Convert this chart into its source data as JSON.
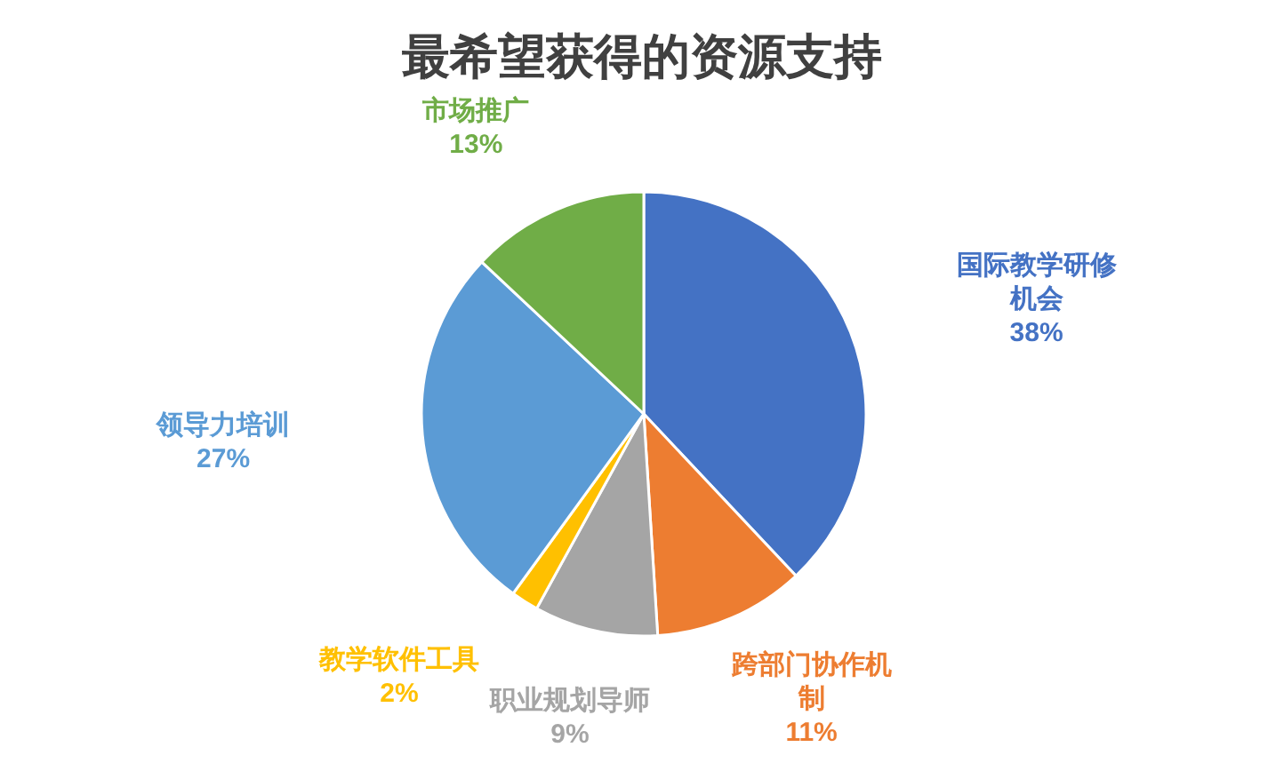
{
  "chart_data": {
    "type": "pie",
    "title": "最希望获得的资源支持",
    "categories": [
      "国际教学研修机会",
      "跨部门协作机制",
      "职业规划导师",
      "教学软件工具",
      "领导力培训",
      "市场推广"
    ],
    "values": [
      38,
      11,
      9,
      2,
      27,
      13
    ],
    "colors": [
      "#4472c4",
      "#ed7d31",
      "#a5a5a5",
      "#ffc000",
      "#5b9bd5",
      "#70ad47"
    ],
    "value_labels": [
      "38%",
      "11%",
      "9%",
      "2%",
      "27%",
      "13%"
    ]
  }
}
